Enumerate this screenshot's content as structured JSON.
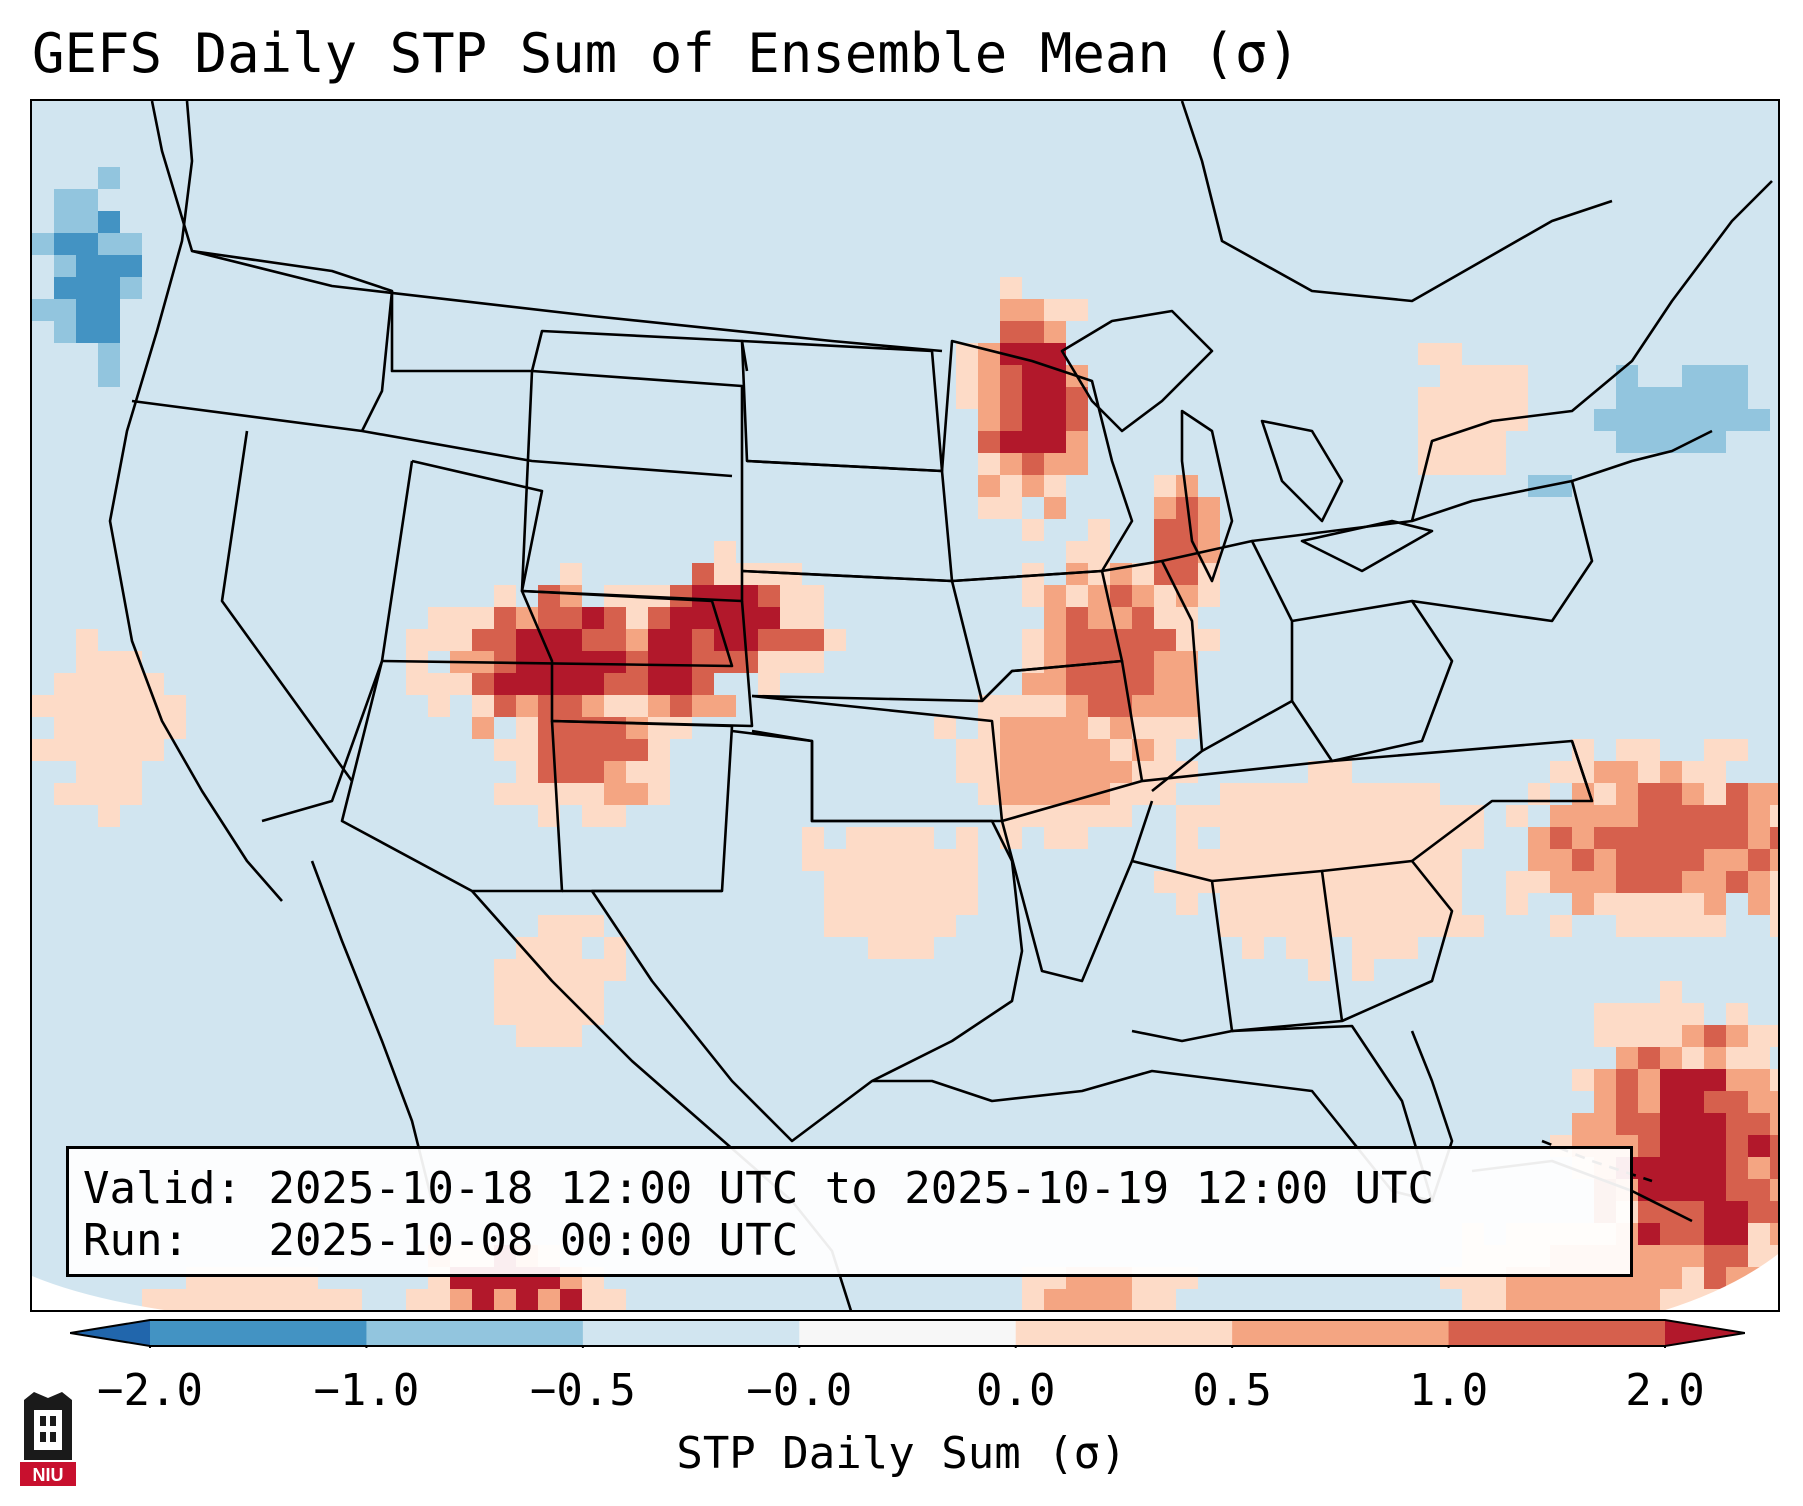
{
  "title": "GEFS Daily STP Sum of Ensemble Mean (σ)",
  "info": {
    "valid_label": "Valid:",
    "valid_value": "2025-10-18 12:00 UTC to 2025-10-19 12:00 UTC",
    "run_label": "Run:",
    "run_value": "2025-10-08 00:00 UTC"
  },
  "colorbar": {
    "label": "STP Daily Sum (σ)",
    "ticks": [
      "−2.0",
      "−1.0",
      "−0.5",
      "−0.0",
      "0.0",
      "0.5",
      "1.0",
      "2.0"
    ],
    "colors": [
      "#2166ac",
      "#4393c3",
      "#92c5de",
      "#d1e5f0",
      "#f7f7f7",
      "#fddbc7",
      "#f4a582",
      "#d6604d",
      "#b2182b"
    ],
    "extend": "both"
  },
  "logo": {
    "text": "NIU"
  },
  "map_regions": [
    {
      "name": "Utah / Colorado / New Mexico",
      "level": "high"
    },
    {
      "name": "Eastern Colorado / Kansas",
      "level": "high"
    },
    {
      "name": "Minnesota / Wisconsin",
      "level": "high"
    },
    {
      "name": "Missouri / Illinois / Iowa",
      "level": "moderate"
    },
    {
      "name": "Atlantic offshore (Carolinas)",
      "level": "moderate"
    },
    {
      "name": "Western Atlantic near Bahamas",
      "level": "high"
    },
    {
      "name": "Pacific northwest offshore",
      "level": "negative"
    }
  ]
}
